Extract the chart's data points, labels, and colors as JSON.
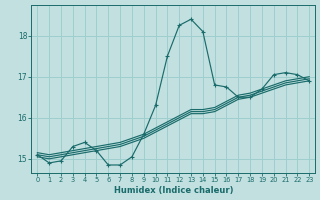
{
  "xlabel": "Humidex (Indice chaleur)",
  "background_color": "#c2e0e0",
  "grid_color": "#9ecece",
  "line_color": "#1a6b6b",
  "xlim": [
    -0.5,
    23.5
  ],
  "ylim": [
    14.65,
    18.75
  ],
  "xtick_values": [
    0,
    1,
    2,
    3,
    4,
    5,
    6,
    7,
    8,
    9,
    10,
    11,
    12,
    13,
    14,
    15,
    16,
    17,
    18,
    19,
    20,
    21,
    22,
    23
  ],
  "xtick_labels": [
    "0",
    "1",
    "2",
    "3",
    "4",
    "5",
    "6",
    "7",
    "8",
    "9",
    "10",
    "11",
    "12",
    "13",
    "14",
    "15",
    "16",
    "17",
    "18",
    "19",
    "20",
    "21",
    "22",
    "23"
  ],
  "ytick_values": [
    15,
    16,
    17,
    18
  ],
  "ytick_labels": [
    "15",
    "16",
    "17",
    "18"
  ],
  "lines": [
    {
      "x": [
        0,
        1,
        2,
        3,
        4,
        5,
        6,
        7,
        8,
        9,
        10,
        11,
        12,
        13,
        14,
        15,
        16,
        17,
        18,
        19,
        20,
        21,
        22,
        23
      ],
      "y": [
        15.1,
        14.9,
        14.95,
        15.3,
        15.4,
        15.2,
        14.85,
        14.85,
        15.05,
        15.6,
        16.3,
        17.5,
        18.25,
        18.4,
        18.1,
        16.8,
        16.75,
        16.5,
        16.5,
        16.7,
        17.05,
        17.1,
        17.05,
        16.9
      ],
      "marker": "+",
      "markersize": 3.5,
      "lw": 0.85
    },
    {
      "x": [
        0,
        1,
        2,
        3,
        4,
        5,
        6,
        7,
        8,
        9,
        10,
        11,
        12,
        13,
        14,
        15,
        16,
        17,
        18,
        19,
        20,
        21,
        22,
        23
      ],
      "y": [
        15.05,
        15.0,
        15.05,
        15.1,
        15.15,
        15.2,
        15.25,
        15.3,
        15.4,
        15.5,
        15.65,
        15.8,
        15.95,
        16.1,
        16.1,
        16.15,
        16.3,
        16.45,
        16.5,
        16.6,
        16.7,
        16.8,
        16.85,
        16.9
      ],
      "marker": null,
      "lw": 0.85
    },
    {
      "x": [
        0,
        1,
        2,
        3,
        4,
        5,
        6,
        7,
        8,
        9,
        10,
        11,
        12,
        13,
        14,
        15,
        16,
        17,
        18,
        19,
        20,
        21,
        22,
        23
      ],
      "y": [
        15.1,
        15.05,
        15.1,
        15.15,
        15.2,
        15.25,
        15.3,
        15.35,
        15.45,
        15.55,
        15.7,
        15.85,
        16.0,
        16.15,
        16.15,
        16.2,
        16.35,
        16.5,
        16.55,
        16.65,
        16.75,
        16.85,
        16.9,
        16.95
      ],
      "marker": null,
      "lw": 0.85
    },
    {
      "x": [
        0,
        1,
        2,
        3,
        4,
        5,
        6,
        7,
        8,
        9,
        10,
        11,
        12,
        13,
        14,
        15,
        16,
        17,
        18,
        19,
        20,
        21,
        22,
        23
      ],
      "y": [
        15.15,
        15.1,
        15.15,
        15.2,
        15.25,
        15.3,
        15.35,
        15.4,
        15.5,
        15.6,
        15.75,
        15.9,
        16.05,
        16.2,
        16.2,
        16.25,
        16.4,
        16.55,
        16.6,
        16.7,
        16.8,
        16.9,
        16.95,
        17.0
      ],
      "marker": null,
      "lw": 0.85
    }
  ]
}
